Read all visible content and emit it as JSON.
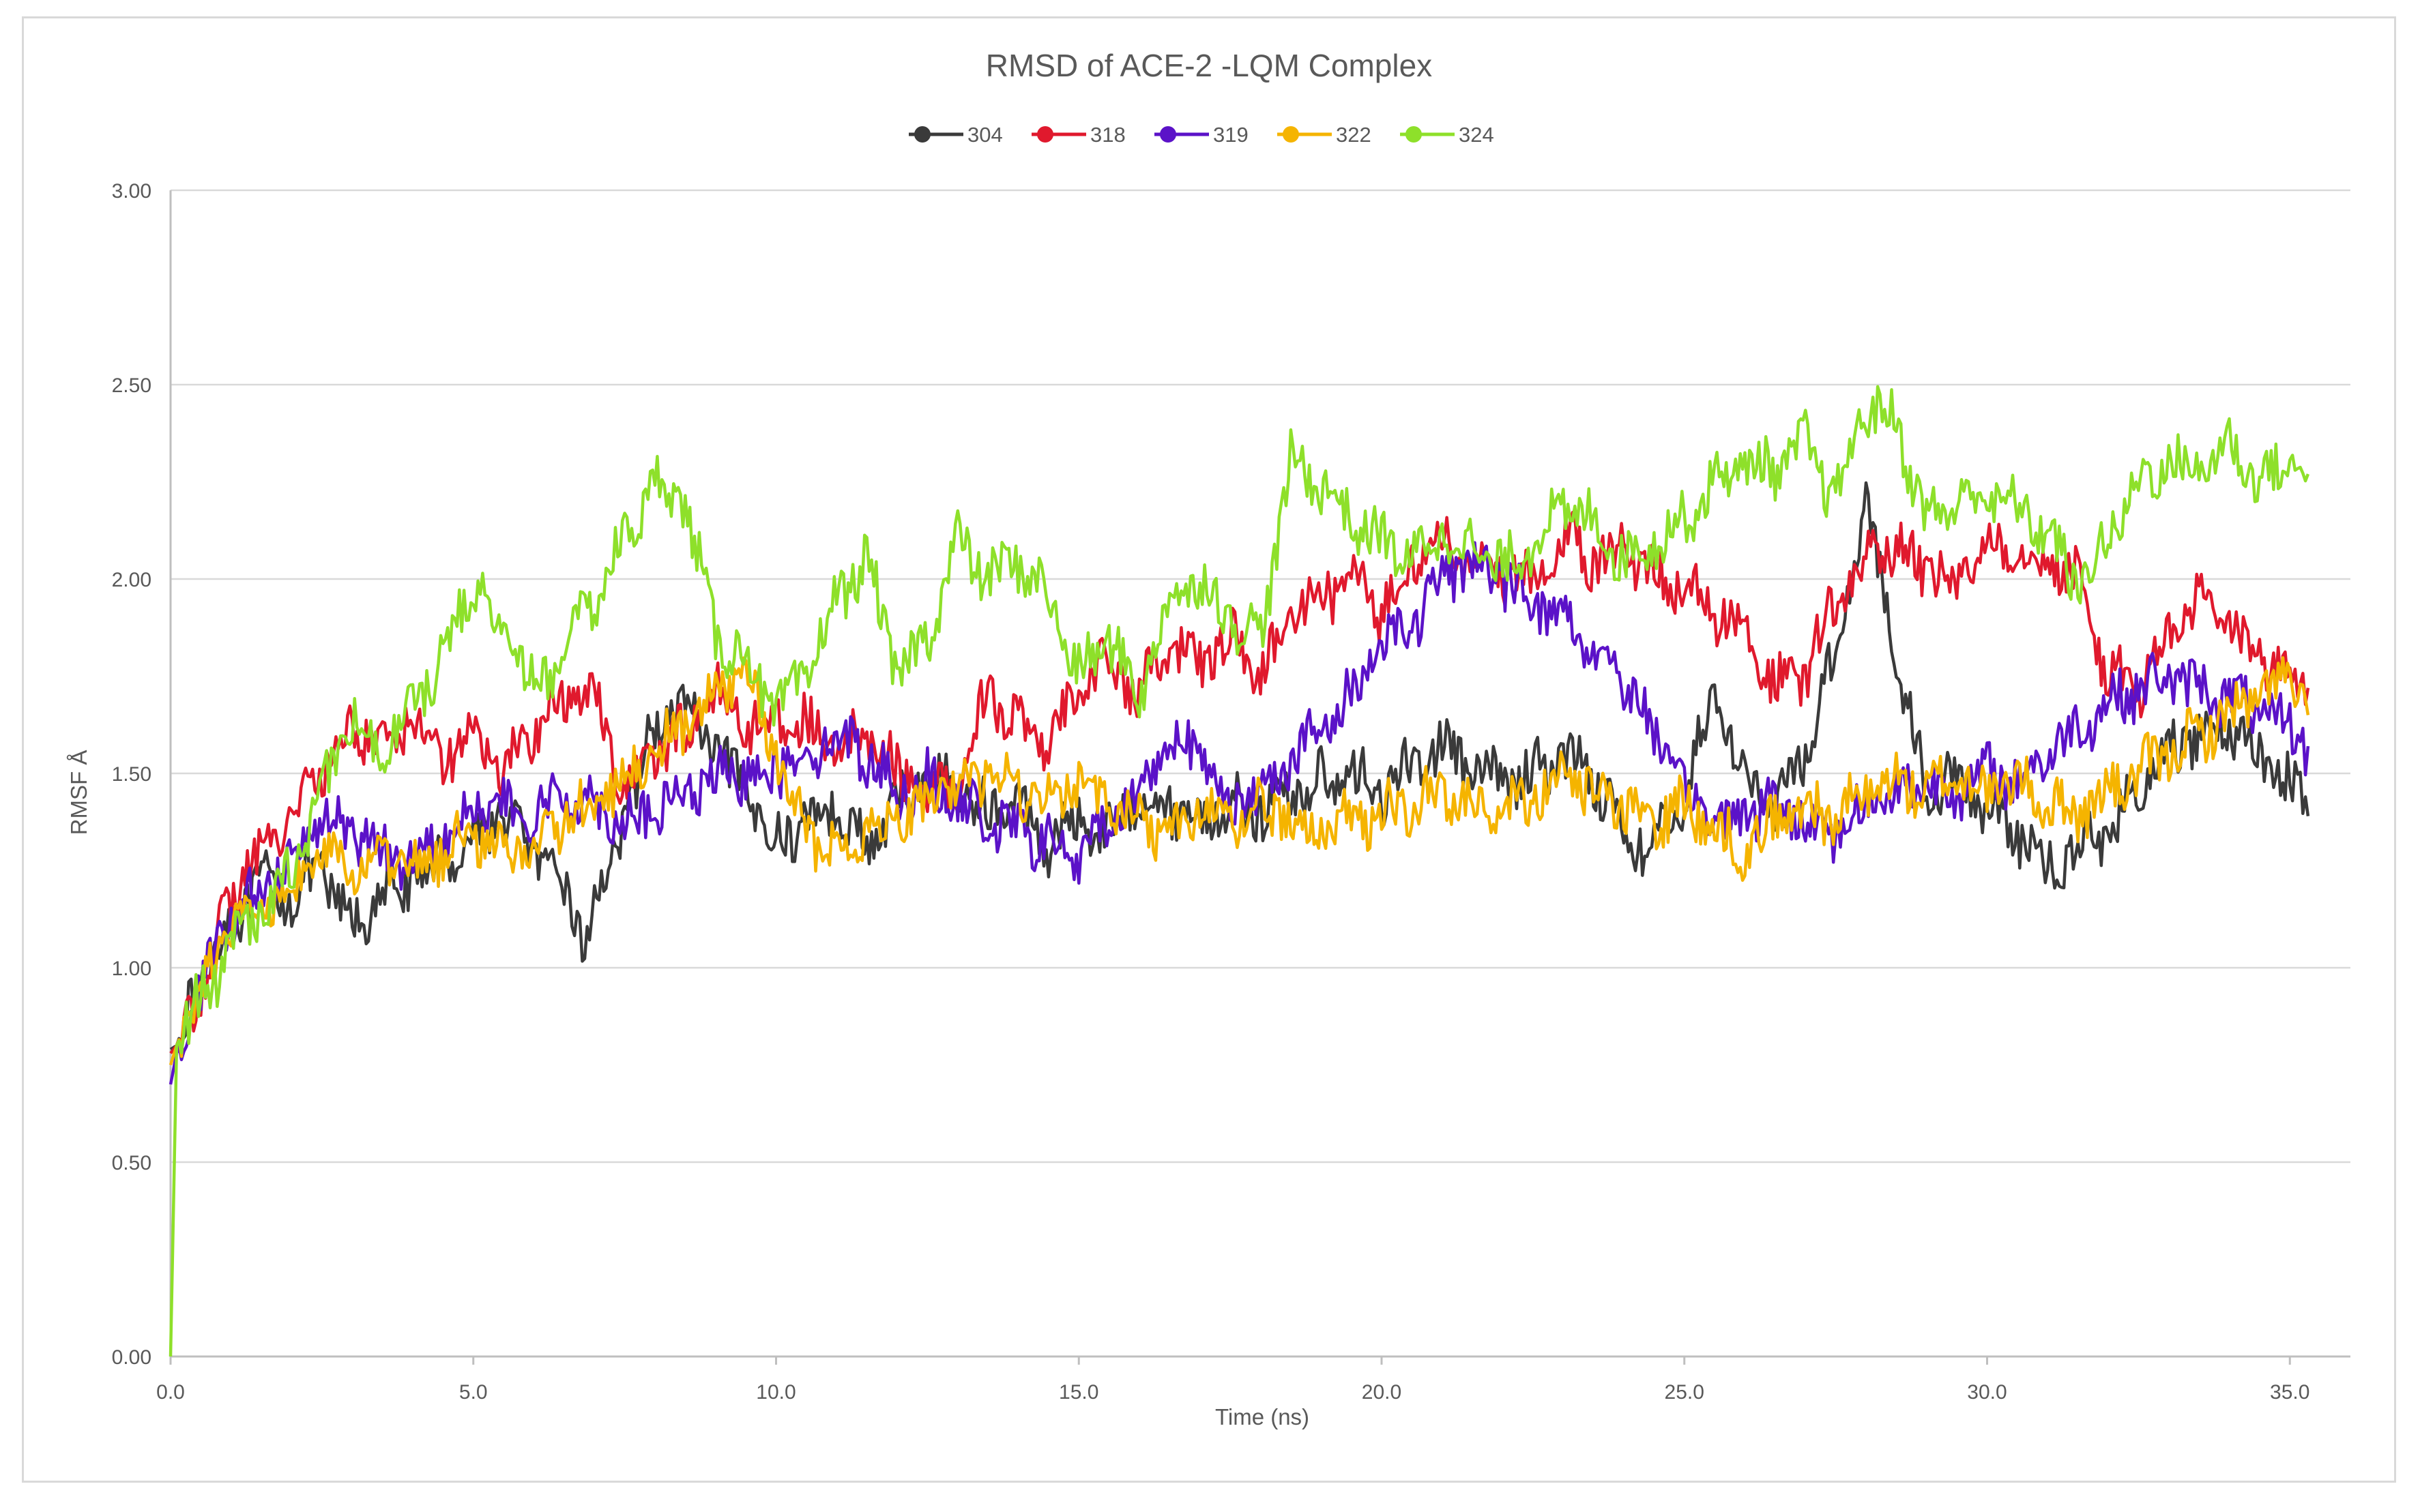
{
  "chart_data": {
    "type": "line",
    "title": "RMSD of ACE-2 -LQM Complex",
    "xlabel": "Time (ns)",
    "ylabel": "RMSF Å",
    "xlim": [
      0,
      36
    ],
    "ylim": [
      0,
      3
    ],
    "x_ticks": [
      "0.0",
      "5.0",
      "10.0",
      "15.0",
      "20.0",
      "25.0",
      "30.0",
      "35.0"
    ],
    "y_ticks": [
      "0.00",
      "0.50",
      "1.00",
      "1.50",
      "2.00",
      "2.50",
      "3.00"
    ],
    "x_tick_values": [
      0,
      5,
      10,
      15,
      20,
      25,
      30,
      35
    ],
    "y_tick_values": [
      0,
      0.5,
      1,
      1.5,
      2,
      2.5,
      3
    ],
    "grid": true,
    "legend_position": "top-center",
    "series": [
      {
        "name": "304",
        "color": "#3a3a3a",
        "x": [
          0,
          0.1,
          0.5,
          1,
          1.5,
          2,
          2.5,
          3,
          3.5,
          4,
          4.5,
          5,
          5.5,
          6,
          6.5,
          6.8,
          7,
          7.5,
          8,
          8.5,
          9,
          9.5,
          10,
          10.5,
          11,
          11.5,
          12,
          12.5,
          13,
          13.5,
          14,
          14.5,
          15,
          15.5,
          16,
          16.5,
          17,
          17.5,
          18,
          18.5,
          19,
          19.5,
          20,
          20.5,
          21,
          21.5,
          22,
          22.5,
          23,
          23.5,
          24,
          24.5,
          25,
          25.5,
          26,
          26.5,
          27,
          27.5,
          28,
          28.5,
          29,
          29.5,
          30,
          30.5,
          31,
          31.5,
          32,
          32.5,
          33,
          33.5,
          34,
          34.5,
          35,
          35.3
        ],
        "values": [
          0.79,
          0.8,
          0.98,
          1.12,
          1.22,
          1.18,
          1.25,
          1.1,
          1.18,
          1.22,
          1.28,
          1.33,
          1.4,
          1.3,
          1.2,
          1.08,
          1.15,
          1.38,
          1.62,
          1.68,
          1.55,
          1.45,
          1.32,
          1.38,
          1.42,
          1.3,
          1.42,
          1.5,
          1.45,
          1.4,
          1.42,
          1.32,
          1.38,
          1.35,
          1.45,
          1.42,
          1.38,
          1.42,
          1.4,
          1.45,
          1.48,
          1.5,
          1.45,
          1.52,
          1.58,
          1.5,
          1.48,
          1.5,
          1.55,
          1.5,
          1.35,
          1.3,
          1.45,
          1.7,
          1.5,
          1.4,
          1.55,
          1.82,
          2.2,
          1.8,
          1.45,
          1.5,
          1.4,
          1.35,
          1.25,
          1.32,
          1.35,
          1.45,
          1.55,
          1.6,
          1.62,
          1.55,
          1.48,
          1.39
        ]
      },
      {
        "name": "318",
        "color": "#e0192d",
        "x": [
          0,
          0.1,
          0.5,
          1,
          1.5,
          2,
          2.5,
          3,
          3.5,
          4,
          4.5,
          5,
          5.5,
          6,
          6.5,
          7,
          7.5,
          8,
          8.5,
          9,
          9.5,
          10,
          10.5,
          11,
          11.5,
          12,
          12.5,
          13,
          13.5,
          14,
          14.5,
          15,
          15.5,
          16,
          16.5,
          17,
          17.5,
          18,
          18.5,
          19,
          19.5,
          20,
          20.5,
          21,
          21.5,
          22,
          22.5,
          23,
          23.5,
          24,
          24.5,
          25,
          25.5,
          26,
          26.5,
          27,
          27.5,
          28,
          28.5,
          29,
          29.5,
          30,
          30.5,
          31,
          31.5,
          32,
          32.5,
          33,
          33.5,
          34,
          34.5,
          35,
          35.3
        ],
        "values": [
          0.78,
          0.8,
          0.95,
          1.18,
          1.3,
          1.4,
          1.5,
          1.62,
          1.58,
          1.65,
          1.55,
          1.6,
          1.5,
          1.62,
          1.68,
          1.72,
          1.45,
          1.55,
          1.6,
          1.72,
          1.62,
          1.65,
          1.62,
          1.55,
          1.6,
          1.5,
          1.45,
          1.48,
          1.72,
          1.62,
          1.55,
          1.75,
          1.78,
          1.7,
          1.82,
          1.78,
          1.85,
          1.75,
          1.9,
          1.95,
          2.0,
          1.92,
          2.05,
          2.08,
          2.05,
          2.02,
          1.98,
          2.1,
          2.05,
          2.08,
          2.02,
          1.98,
          1.92,
          1.85,
          1.72,
          1.75,
          1.95,
          2.05,
          2.08,
          2.02,
          1.98,
          2.1,
          2.08,
          2.05,
          2.0,
          1.75,
          1.72,
          1.85,
          1.95,
          1.88,
          1.8,
          1.75,
          1.72
        ]
      },
      {
        "name": "319",
        "color": "#5b12c8",
        "x": [
          0,
          0.1,
          0.5,
          1,
          1.5,
          2,
          2.5,
          3,
          3.5,
          4,
          4.5,
          5,
          5.5,
          6,
          6.5,
          7,
          7.5,
          8,
          8.5,
          9,
          9.5,
          10,
          10.5,
          11,
          11.5,
          12,
          12.5,
          13,
          13.5,
          14,
          14.5,
          15,
          15.5,
          16,
          16.5,
          17,
          17.5,
          18,
          18.5,
          19,
          19.5,
          20,
          20.5,
          21,
          21.5,
          22,
          22.5,
          23,
          23.5,
          24,
          24.5,
          25,
          25.5,
          26,
          26.5,
          27,
          27.5,
          28,
          28.5,
          29,
          29.5,
          30,
          30.5,
          31,
          31.5,
          32,
          32.5,
          33,
          33.5,
          34,
          34.5,
          35,
          35.3
        ],
        "values": [
          0.7,
          0.78,
          0.95,
          1.12,
          1.2,
          1.3,
          1.38,
          1.35,
          1.3,
          1.28,
          1.35,
          1.42,
          1.4,
          1.38,
          1.45,
          1.42,
          1.38,
          1.4,
          1.45,
          1.48,
          1.5,
          1.52,
          1.55,
          1.6,
          1.55,
          1.45,
          1.48,
          1.42,
          1.38,
          1.35,
          1.32,
          1.28,
          1.38,
          1.45,
          1.6,
          1.55,
          1.42,
          1.45,
          1.55,
          1.6,
          1.7,
          1.85,
          1.88,
          2.0,
          2.05,
          2.0,
          1.95,
          1.9,
          1.82,
          1.75,
          1.6,
          1.45,
          1.38,
          1.4,
          1.42,
          1.38,
          1.35,
          1.42,
          1.45,
          1.48,
          1.45,
          1.5,
          1.48,
          1.55,
          1.62,
          1.68,
          1.72,
          1.75,
          1.72,
          1.7,
          1.65,
          1.62,
          1.57
        ]
      },
      {
        "name": "322",
        "color": "#f5b400",
        "x": [
          0,
          0.1,
          0.5,
          1,
          1.5,
          2,
          2.5,
          3,
          3.5,
          4,
          4.5,
          5,
          5.5,
          6,
          6.5,
          7,
          7.5,
          8,
          8.5,
          9,
          9.5,
          10,
          10.5,
          11,
          11.5,
          12,
          12.5,
          13,
          13.5,
          14,
          14.5,
          15,
          15.5,
          16,
          16.5,
          17,
          17.5,
          18,
          18.5,
          19,
          19.5,
          20,
          20.5,
          21,
          21.5,
          22,
          22.5,
          23,
          23.5,
          24,
          24.5,
          25,
          25.5,
          26,
          26.5,
          27,
          27.5,
          28,
          28.5,
          29,
          29.5,
          30,
          30.5,
          31,
          31.5,
          32,
          32.5,
          33,
          33.5,
          34,
          34.5,
          35,
          35.3
        ],
        "values": [
          0.75,
          0.8,
          0.95,
          1.1,
          1.15,
          1.22,
          1.28,
          1.25,
          1.28,
          1.25,
          1.3,
          1.35,
          1.3,
          1.32,
          1.38,
          1.42,
          1.48,
          1.55,
          1.62,
          1.7,
          1.75,
          1.55,
          1.35,
          1.3,
          1.35,
          1.38,
          1.42,
          1.48,
          1.5,
          1.45,
          1.42,
          1.48,
          1.42,
          1.38,
          1.35,
          1.4,
          1.38,
          1.42,
          1.38,
          1.35,
          1.38,
          1.4,
          1.42,
          1.45,
          1.4,
          1.42,
          1.45,
          1.48,
          1.45,
          1.4,
          1.38,
          1.42,
          1.35,
          1.3,
          1.38,
          1.42,
          1.38,
          1.45,
          1.48,
          1.45,
          1.5,
          1.45,
          1.48,
          1.42,
          1.4,
          1.45,
          1.5,
          1.55,
          1.6,
          1.65,
          1.7,
          1.75,
          1.65
        ]
      },
      {
        "name": "324",
        "color": "#8ee02a",
        "x": [
          0,
          0.1,
          0.5,
          1,
          1.5,
          2,
          2.5,
          3,
          3.5,
          4,
          4.5,
          5,
          5.5,
          6,
          6.5,
          7,
          7.5,
          8,
          8.5,
          9,
          9.5,
          10,
          10.5,
          11,
          11.5,
          12,
          12.5,
          13,
          13.5,
          14,
          14.5,
          15,
          15.5,
          16,
          16.5,
          17,
          17.5,
          18,
          18.5,
          19,
          19.5,
          20,
          20.5,
          21,
          21.5,
          22,
          22.5,
          23,
          23.5,
          24,
          24.5,
          25,
          25.5,
          26,
          26.5,
          27,
          27.5,
          28,
          28.5,
          29,
          29.5,
          30,
          30.5,
          31,
          31.5,
          32,
          32.5,
          33,
          33.5,
          34,
          34.5,
          35,
          35.3
        ],
        "values": [
          0.0,
          0.8,
          0.92,
          1.05,
          1.15,
          1.25,
          1.45,
          1.65,
          1.55,
          1.68,
          1.8,
          2.0,
          1.85,
          1.72,
          1.8,
          1.95,
          2.1,
          2.25,
          2.2,
          1.85,
          1.8,
          1.65,
          1.75,
          1.95,
          2.05,
          1.75,
          1.85,
          2.1,
          2.0,
          2.05,
          1.95,
          1.75,
          1.85,
          1.7,
          1.95,
          2.0,
          1.9,
          1.85,
          2.3,
          2.25,
          2.15,
          2.1,
          2.05,
          2.12,
          2.08,
          2.02,
          2.1,
          2.18,
          2.15,
          2.05,
          2.1,
          2.15,
          2.25,
          2.3,
          2.28,
          2.35,
          2.2,
          2.45,
          2.4,
          2.15,
          2.2,
          2.22,
          2.18,
          2.12,
          1.98,
          2.1,
          2.25,
          2.3,
          2.28,
          2.35,
          2.25,
          2.3,
          2.27
        ]
      }
    ]
  }
}
